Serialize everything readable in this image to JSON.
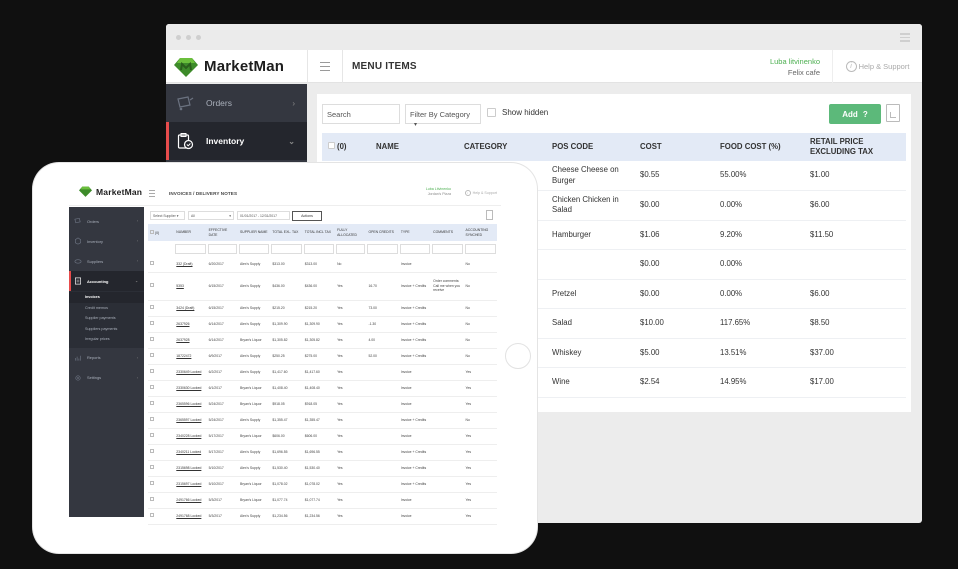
{
  "desktop": {
    "window_menu_icon": "hamburger-icon",
    "brand": "MarketMan",
    "page_title": "MENU ITEMS",
    "user": {
      "name": "Luba litvinenko",
      "company": "Felix cafe"
    },
    "help_label": "Help & Support",
    "sidebar": [
      {
        "label": "Orders",
        "icon": "cart-icon",
        "chevron": "›",
        "active": false
      },
      {
        "label": "Inventory",
        "icon": "clipboard-icon",
        "chevron": "⌄",
        "active": true
      }
    ],
    "toolbar": {
      "search_placeholder": "Search",
      "filter_label": "Filter By Category",
      "show_hidden_label": "Show hidden",
      "add_label": "Add",
      "add_icon": "?"
    },
    "table": {
      "columns": [
        "(0)",
        "NAME",
        "CATEGORY",
        "POS CODE",
        "COST",
        "FOOD COST (%)",
        "RETAIL PRICE EXCLUDING TAX"
      ],
      "rows": [
        {
          "pos_code": "Cheese Cheese on Burger",
          "cost": "$0.55",
          "food_cost": "55.00%",
          "retail": "$1.00"
        },
        {
          "pos_code": "Chicken Chicken in Salad",
          "cost": "$0.00",
          "food_cost": "0.00%",
          "retail": "$6.00"
        },
        {
          "pos_code": "Hamburger",
          "cost": "$1.06",
          "food_cost": "9.20%",
          "retail": "$11.50"
        },
        {
          "pos_code": "",
          "cost": "$0.00",
          "food_cost": "0.00%",
          "retail": ""
        },
        {
          "pos_code": "Pretzel",
          "cost": "$0.00",
          "food_cost": "0.00%",
          "retail": "$6.00"
        },
        {
          "pos_code": "Salad",
          "cost": "$10.00",
          "food_cost": "117.65%",
          "retail": "$8.50"
        },
        {
          "pos_code": "Whiskey",
          "cost": "$5.00",
          "food_cost": "13.51%",
          "retail": "$37.00"
        },
        {
          "pos_code": "Wine",
          "cost": "$2.54",
          "food_cost": "14.95%",
          "retail": "$17.00"
        }
      ]
    }
  },
  "tablet": {
    "brand": "MarketMan",
    "page_title": "INVOICES / DELIVERY NOTES",
    "user": {
      "name": "Luba Litvinenko",
      "company": "Jordan's Pizza"
    },
    "help_label": "Help & Support",
    "sidebar": [
      {
        "label": "Orders",
        "chevron": "›"
      },
      {
        "label": "Inventory",
        "chevron": "›"
      },
      {
        "label": "Suppliers",
        "chevron": "›"
      },
      {
        "label": "Accounting",
        "chevron": "⌄"
      },
      {
        "label": "Reports",
        "chevron": "›"
      },
      {
        "label": "Settings",
        "chevron": "›"
      }
    ],
    "accounting_sub": [
      "Invoices",
      "Credit memos",
      "Supplier payments",
      "Suppliers payments",
      "Irregular prices"
    ],
    "toolbar": {
      "supplier_select": "Select Supplier",
      "status_select": "All",
      "date_range": "01/01/2017 - 12/31/2017",
      "actions_label": "Actions"
    },
    "columns": [
      "(0)",
      "NUMBER",
      "EFFECTIVE DATE",
      "SUPPLIER NAME",
      "TOTAL EXL. TAX",
      "TOTAL INCL TAX",
      "FULLY ALLOCATED",
      "OPEN CREDITS",
      "TYPE",
      "COMMENTS",
      "ACCOUNTING SYNCHED"
    ],
    "rows": [
      {
        "number": "332 (Draft)",
        "date": "6/20/2017",
        "supplier": "Alex's Supply",
        "excl": "$313.00",
        "incl": "$313.00",
        "allocated": "No",
        "credits": "",
        "type": "Invoice",
        "comments": "",
        "synched": "No"
      },
      {
        "number": "5353",
        "date": "6/15/2017",
        "supplier": "Alex's Supply",
        "excl": "$436.00",
        "incl": "$436.00",
        "allocated": "Yes",
        "credits": "16.70",
        "type": "Invoice + Credits",
        "comments": "Order comments: Call me when you receive",
        "synched": "No"
      },
      {
        "number": "3424 (Draft)",
        "date": "6/15/2017",
        "supplier": "Alex's Supply",
        "excl": "$215.20",
        "incl": "$215.20",
        "allocated": "Yes",
        "credits": "73.00",
        "type": "Invoice + Credits",
        "comments": "",
        "synched": "No"
      },
      {
        "number": "2637926",
        "date": "6/14/2017",
        "supplier": "Alex's Supply",
        "excl": "$1,309.90",
        "incl": "$1,309.90",
        "allocated": "Yes",
        "credits": "-1.30",
        "type": "Invoice + Credits",
        "comments": "",
        "synched": "No"
      },
      {
        "number": "2637928",
        "date": "6/14/2017",
        "supplier": "Bryan's Liquor",
        "excl": "$1,305.82",
        "incl": "$1,305.82",
        "allocated": "Yes",
        "credits": "4.00",
        "type": "Invoice + Credits",
        "comments": "",
        "synched": "No"
      },
      {
        "number": "18722472",
        "date": "6/9/2017",
        "supplier": "Alex's Supply",
        "excl": "$250.25",
        "incl": "$275.00",
        "allocated": "Yes",
        "credits": "52.00",
        "type": "Invoice + Credits",
        "comments": "",
        "synched": "No"
      },
      {
        "number": "2330649 Locked",
        "date": "6/2/2017",
        "supplier": "Alex's Supply",
        "excl": "$1,417.60",
        "incl": "$1,417.60",
        "allocated": "Yes",
        "credits": "",
        "type": "Invoice",
        "comments": "",
        "synched": "Yes"
      },
      {
        "number": "2330630 Locked",
        "date": "6/1/2017",
        "supplier": "Bryan's Liquor",
        "excl": "$1,408.40",
        "incl": "$1,408.40",
        "allocated": "Yes",
        "credits": "",
        "type": "Invoice",
        "comments": "",
        "synched": "Yes"
      },
      {
        "number": "2365596 Locked",
        "date": "5/24/2017",
        "supplier": "Bryan's Liquor",
        "excl": "$918.05",
        "incl": "$918.05",
        "allocated": "Yes",
        "credits": "",
        "type": "Invoice",
        "comments": "",
        "synched": "Yes"
      },
      {
        "number": "2365597 Locked",
        "date": "5/24/2017",
        "supplier": "Alex's Supply",
        "excl": "$1,355.47",
        "incl": "$1,355.47",
        "allocated": "Yes",
        "credits": "",
        "type": "Invoice + Credits",
        "comments": "",
        "synched": "No"
      },
      {
        "number": "2340228 Locked",
        "date": "5/17/2017",
        "supplier": "Bryan's Liquor",
        "excl": "$606.00",
        "incl": "$606.00",
        "allocated": "Yes",
        "credits": "",
        "type": "Invoice",
        "comments": "",
        "synched": "Yes"
      },
      {
        "number": "2340211 Locked",
        "date": "5/17/2017",
        "supplier": "Alex's Supply",
        "excl": "$1,696.55",
        "incl": "$1,696.55",
        "allocated": "Yes",
        "credits": "",
        "type": "Invoice + Credits",
        "comments": "",
        "synched": "Yes"
      },
      {
        "number": "2315698 Locked",
        "date": "5/10/2017",
        "supplier": "Alex's Supply",
        "excl": "$1,530.40",
        "incl": "$1,530.40",
        "allocated": "Yes",
        "credits": "",
        "type": "Invoice + Credits",
        "comments": "",
        "synched": "Yes"
      },
      {
        "number": "2315697 Locked",
        "date": "5/10/2017",
        "supplier": "Bryan's Liquor",
        "excl": "$1,078.02",
        "incl": "$1,078.02",
        "allocated": "Yes",
        "credits": "",
        "type": "Invoice + Credits",
        "comments": "",
        "synched": "Yes"
      },
      {
        "number": "2491766 Locked",
        "date": "5/3/2017",
        "supplier": "Bryan's Liquor",
        "excl": "$1,077.74",
        "incl": "$1,077.74",
        "allocated": "Yes",
        "credits": "",
        "type": "Invoice",
        "comments": "",
        "synched": "Yes"
      },
      {
        "number": "2491768 Locked",
        "date": "5/3/2017",
        "supplier": "Alex's Supply",
        "excl": "$1,234.56",
        "incl": "$1,234.56",
        "allocated": "Yes",
        "credits": "",
        "type": "Invoice",
        "comments": "",
        "synched": "Yes"
      }
    ]
  },
  "colors": {
    "brand_green": "#4caf50",
    "add_button": "#5cb97a",
    "sidebar_bg": "#343740",
    "sidebar_active_bar": "#e74c4c",
    "table_header_bg": "#e3eaf6"
  }
}
